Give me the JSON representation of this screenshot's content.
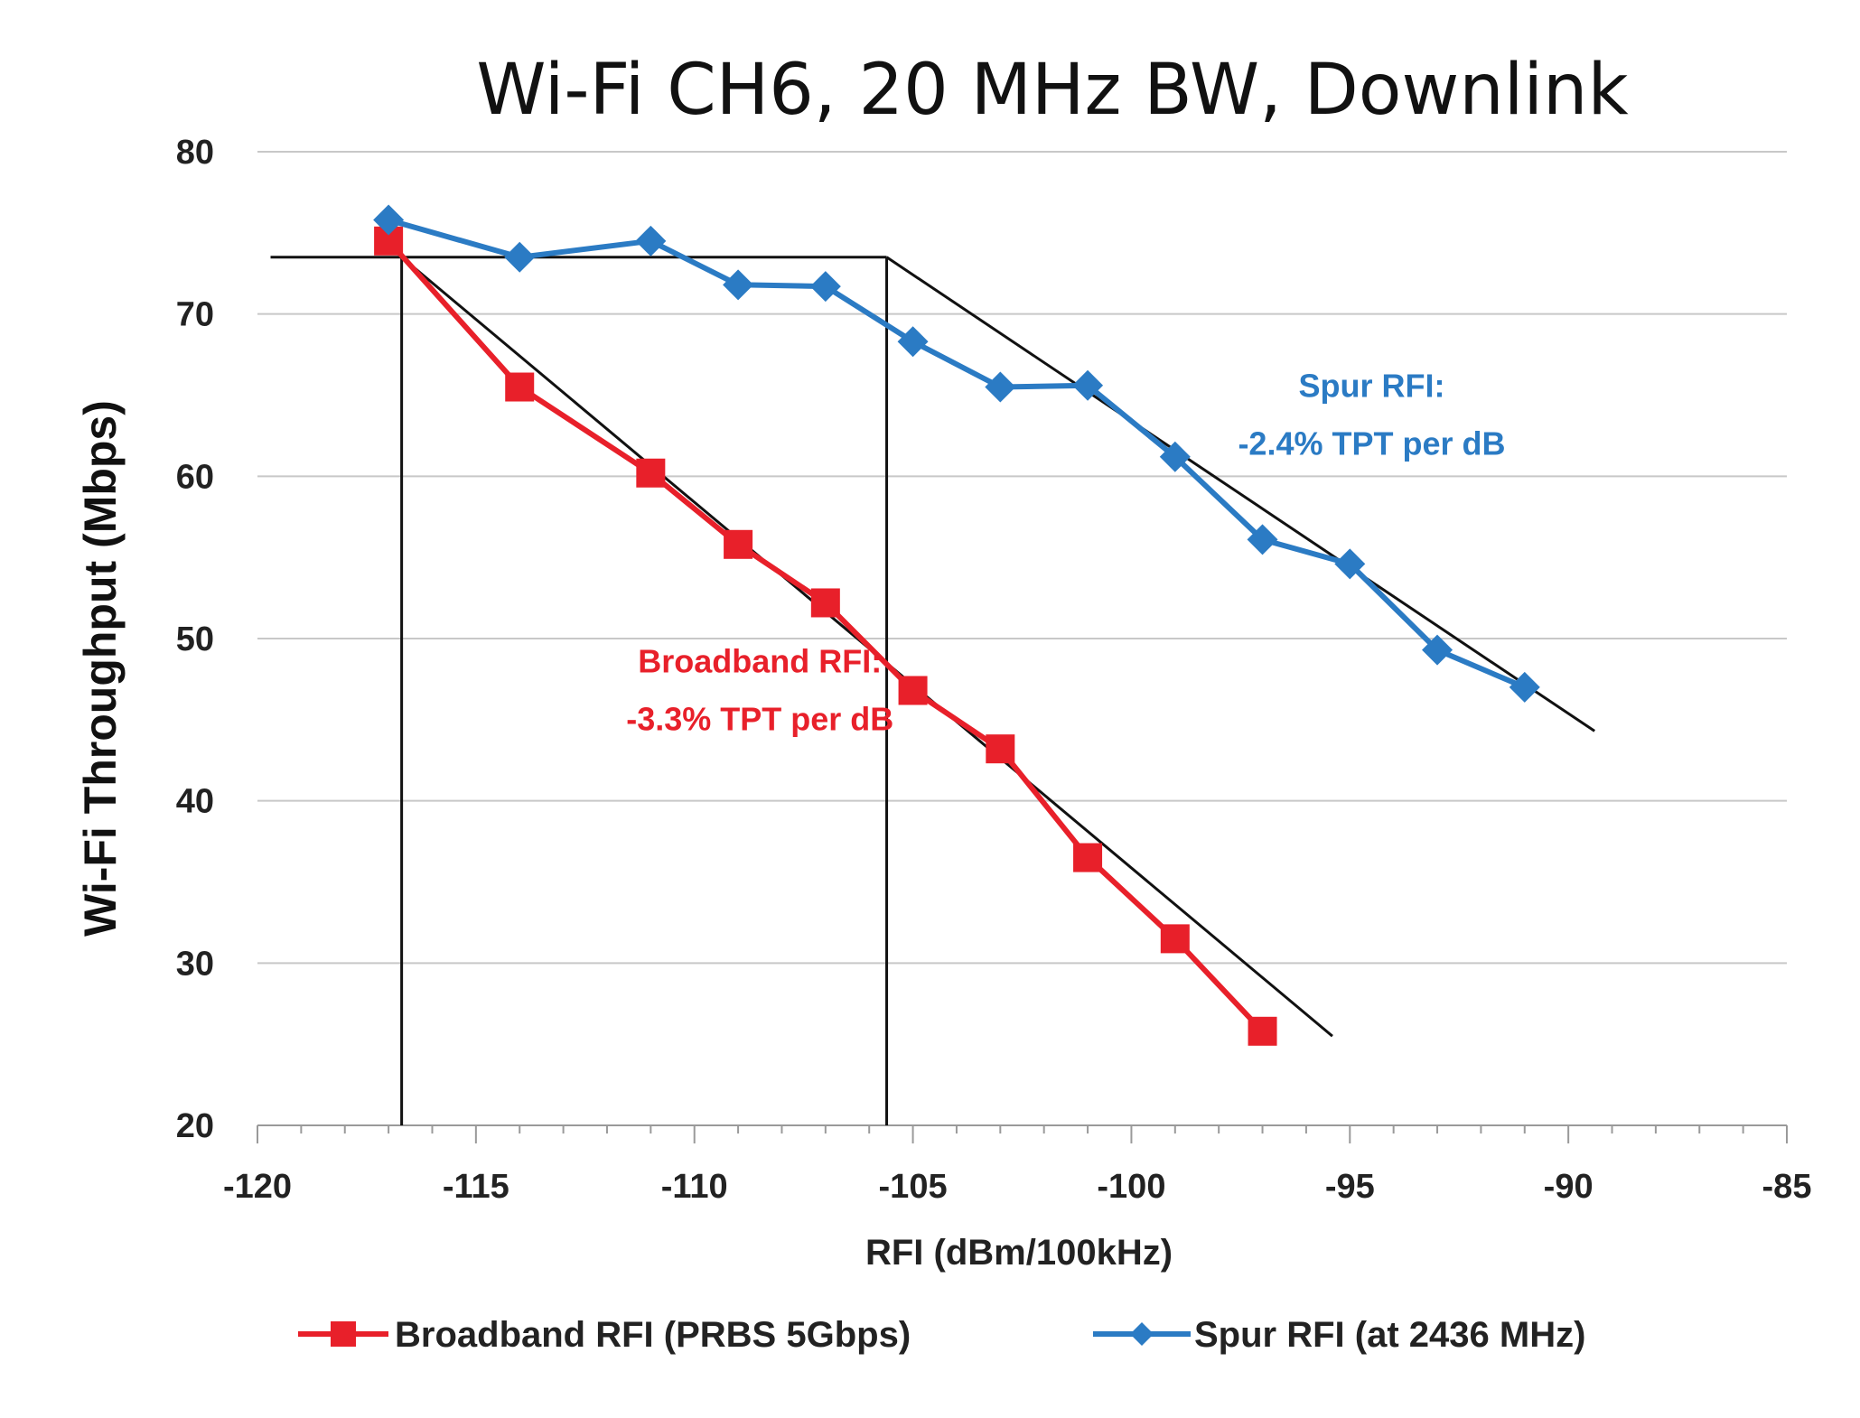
{
  "chart_data": {
    "type": "line",
    "title": "Wi-Fi CH6, 20 MHz BW, Downlink",
    "xlabel": "RFI (dBm/100kHz)",
    "ylabel": "Wi-Fi Throughput (Mbps)",
    "xlim": [
      -120,
      -85
    ],
    "ylim": [
      20,
      80
    ],
    "x_ticks": [
      "-120",
      "-115",
      "-110",
      "-105",
      "-100",
      "-95",
      "-90",
      "-85"
    ],
    "y_ticks": [
      "20",
      "30",
      "40",
      "50",
      "60",
      "70",
      "80"
    ],
    "grid": "horizontal",
    "legend_position": "bottom",
    "series": [
      {
        "name": "Broadband RFI (PRBS 5Gbps)",
        "color": "#e8202a",
        "marker": "square",
        "x": [
          -117,
          -114,
          -111,
          -109,
          -107,
          -105,
          -103,
          -101,
          -99,
          -97
        ],
        "y": [
          74.5,
          65.5,
          60.2,
          55.8,
          52.2,
          46.8,
          43.2,
          36.5,
          31.5,
          25.8
        ]
      },
      {
        "name": "Spur RFI (at 2436 MHz)",
        "color": "#2b7bc4",
        "marker": "diamond",
        "x": [
          -117,
          -114,
          -111,
          -109,
          -107,
          -105,
          -103,
          -101,
          -99,
          -97,
          -95,
          -93,
          -91
        ],
        "y": [
          75.8,
          73.5,
          74.5,
          71.8,
          71.7,
          68.3,
          65.5,
          65.6,
          61.2,
          56.1,
          54.6,
          49.3,
          47.0
        ]
      }
    ],
    "trend_lines": [
      {
        "color": "#111111",
        "x": [
          -119.7,
          -105.6
        ],
        "y": [
          73.5,
          73.5
        ]
      },
      {
        "color": "#111111",
        "x": [
          -116.7,
          -116.7
        ],
        "y": [
          20,
          73.5
        ]
      },
      {
        "color": "#111111",
        "x": [
          -105.6,
          -105.6
        ],
        "y": [
          20,
          73.5
        ]
      },
      {
        "color": "#111111",
        "x": [
          -116.7,
          -95.4
        ],
        "y": [
          73.5,
          25.5
        ]
      },
      {
        "color": "#111111",
        "x": [
          -105.6,
          -89.4
        ],
        "y": [
          73.5,
          44.3
        ]
      }
    ],
    "annotations": [
      {
        "lines": [
          "Broadband RFI:",
          "-3.3% TPT per dB"
        ],
        "color": "#e8202a",
        "x": -108.5,
        "y": 47.9
      },
      {
        "lines": [
          "Spur RFI:",
          "-2.4% TPT per dB"
        ],
        "color": "#2b7bc4",
        "x": -94.5,
        "y": 64.9
      }
    ]
  }
}
